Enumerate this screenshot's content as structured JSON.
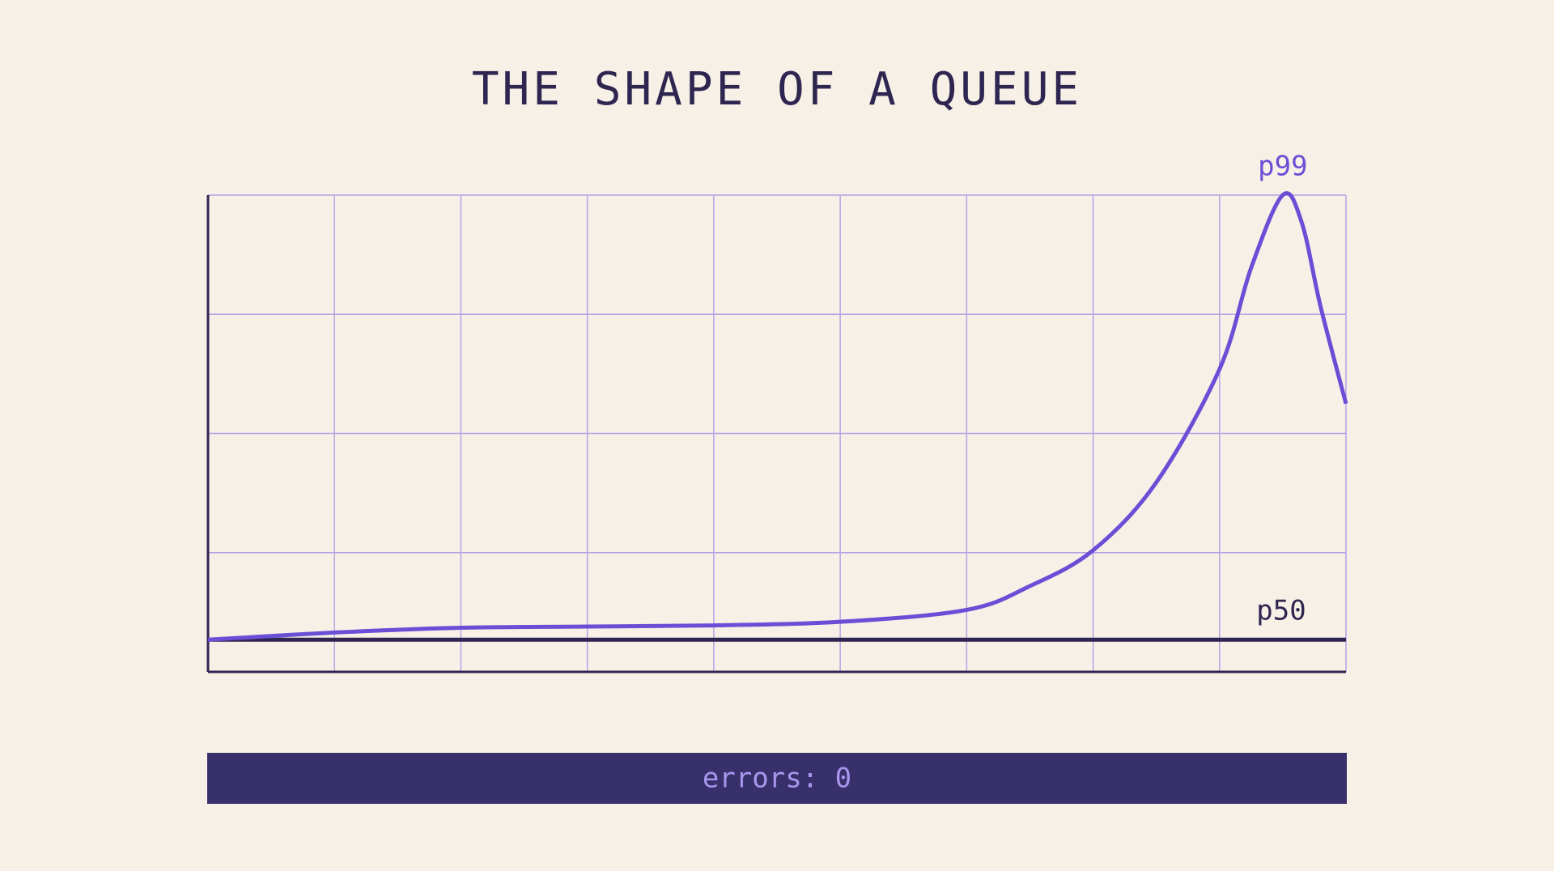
{
  "chart_data": {
    "type": "line",
    "title": "THE SHAPE OF A QUEUE",
    "series": [
      {
        "name": "p99",
        "color": "#6a4fd6",
        "x": [
          0,
          1,
          2,
          3,
          4,
          5,
          6,
          6.5,
          7,
          7.5,
          8,
          8.25,
          8.5,
          8.65,
          8.8,
          9
        ],
        "values": [
          0.27,
          0.33,
          0.37,
          0.38,
          0.39,
          0.42,
          0.52,
          0.72,
          1.02,
          1.59,
          2.54,
          3.39,
          4.0,
          3.77,
          3.06,
          2.25
        ]
      },
      {
        "name": "p50",
        "color": "#2e2650",
        "x": [
          0,
          9
        ],
        "values": [
          0.27,
          0.27
        ]
      }
    ],
    "xlim": [
      0,
      9
    ],
    "xticks": [
      0,
      1,
      2,
      3,
      4,
      5,
      6,
      7,
      8,
      9
    ],
    "ylim": [
      0,
      4
    ],
    "yticks": [
      0,
      1,
      2,
      3,
      4
    ],
    "grid": true,
    "footer": "errors: 0"
  }
}
